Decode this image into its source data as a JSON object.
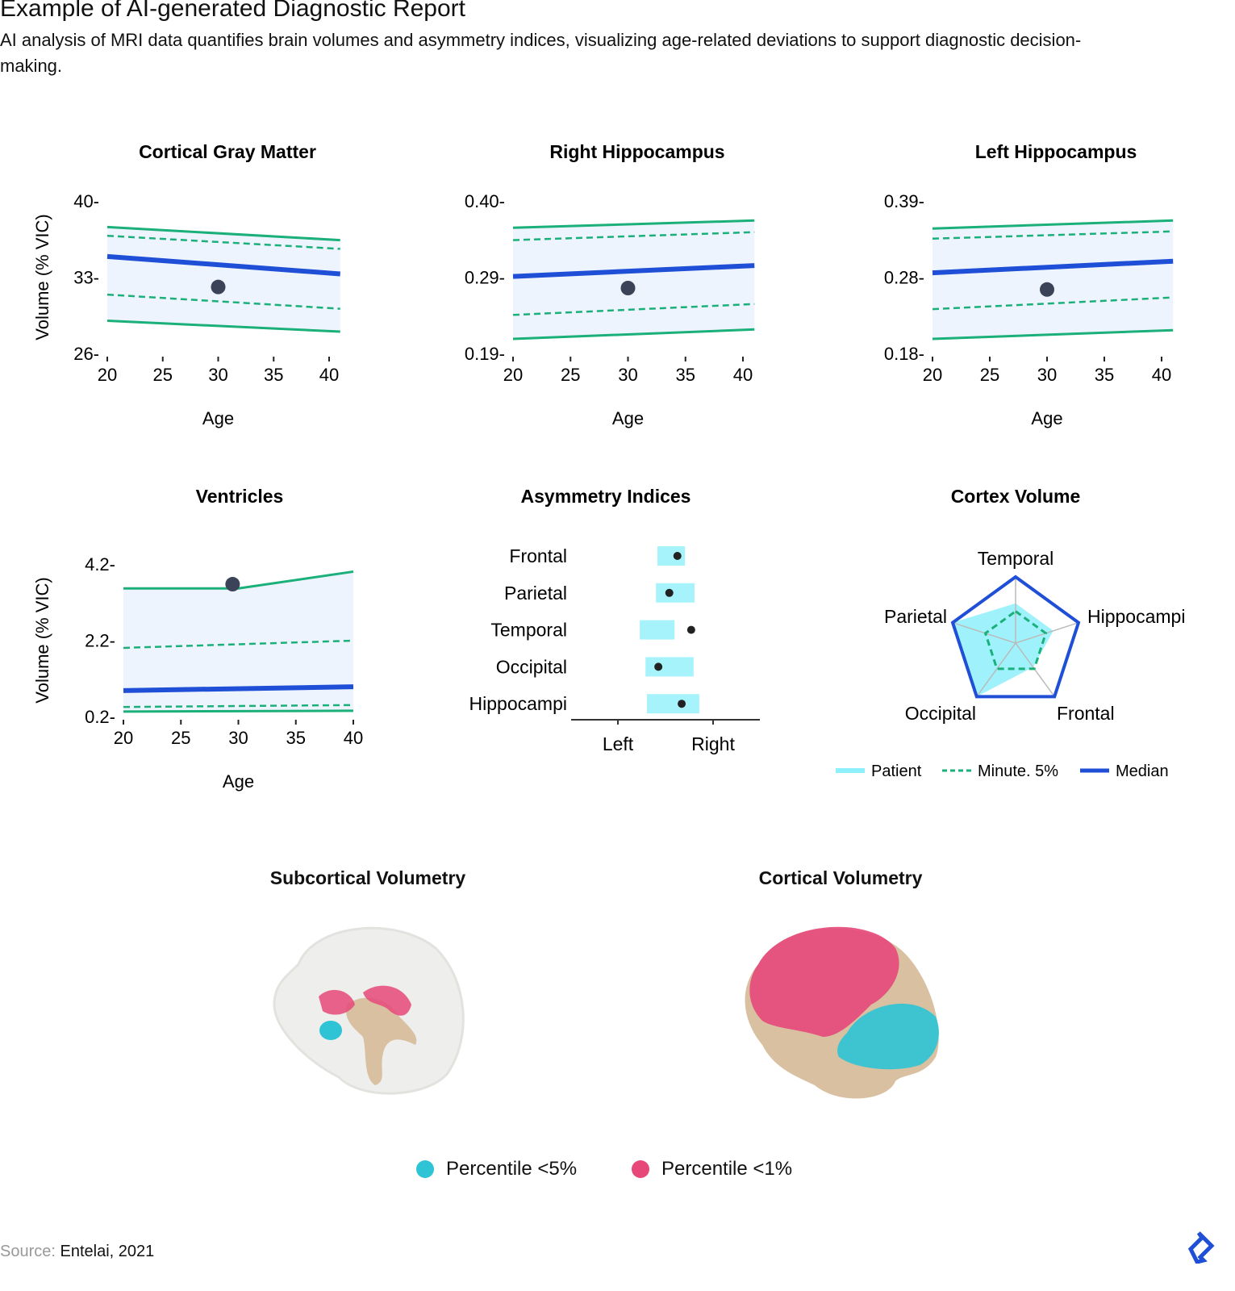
{
  "title": "Example of AI-generated Diagnostic Report",
  "subtitle": "AI analysis of MRI data quantifies brain volumes and asymmetry indices, visualizing age-related deviations to support diagnostic decision-making.",
  "colors": {
    "band": "#eef4fe",
    "outer": "#1bb07a",
    "dashed": "#1bb07a",
    "median": "#1f4fd6",
    "patient": "#3a4357",
    "asym_bar": "#a6f3fb",
    "radar_patient": "#8ef0fb",
    "pct5": "#2ec4d6",
    "pct1": "#e6487a"
  },
  "chart_data": [
    {
      "type": "line",
      "title": "Cortical Gray Matter",
      "xlabel": "Age",
      "ylabel": "Volume (% VIC)",
      "xticks": [
        20,
        25,
        30,
        35,
        40
      ],
      "yticks": [
        "26",
        "33",
        "40"
      ],
      "ylim": [
        26,
        40
      ],
      "xlim": [
        20,
        40
      ],
      "series": {
        "upper": [
          [
            20,
            37.6
          ],
          [
            41,
            36.4
          ]
        ],
        "upper_dashed": [
          [
            20,
            36.8
          ],
          [
            41,
            35.6
          ]
        ],
        "median": [
          [
            20,
            34.9
          ],
          [
            41,
            33.3
          ]
        ],
        "lower_dashed": [
          [
            20,
            31.4
          ],
          [
            41,
            30.1
          ]
        ],
        "lower": [
          [
            20,
            29.0
          ],
          [
            41,
            28.0
          ]
        ]
      },
      "patient": [
        30,
        32.1
      ]
    },
    {
      "type": "line",
      "title": "Right Hippocampus",
      "xlabel": "Age",
      "ylabel": "",
      "xticks": [
        20,
        25,
        30,
        35,
        40
      ],
      "yticks": [
        "0.19",
        "0.29",
        "0.40"
      ],
      "ylim": [
        0.19,
        0.4
      ],
      "xlim": [
        20,
        40
      ],
      "series": {
        "upper": [
          [
            20,
            0.363
          ],
          [
            41,
            0.373
          ]
        ],
        "upper_dashed": [
          [
            20,
            0.346
          ],
          [
            41,
            0.357
          ]
        ],
        "median": [
          [
            20,
            0.296
          ],
          [
            41,
            0.311
          ]
        ],
        "lower_dashed": [
          [
            20,
            0.243
          ],
          [
            41,
            0.258
          ]
        ],
        "lower": [
          [
            20,
            0.21
          ],
          [
            41,
            0.223
          ]
        ]
      },
      "patient": [
        30,
        0.28
      ]
    },
    {
      "type": "line",
      "title": "Left Hippocampus",
      "xlabel": "Age",
      "ylabel": "",
      "xticks": [
        20,
        25,
        30,
        35,
        40
      ],
      "yticks": [
        "0.18",
        "0.28",
        "0.39"
      ],
      "ylim": [
        0.18,
        0.39
      ],
      "xlim": [
        20,
        40
      ],
      "series": {
        "upper": [
          [
            20,
            0.352
          ],
          [
            41,
            0.363
          ]
        ],
        "upper_dashed": [
          [
            20,
            0.338
          ],
          [
            41,
            0.348
          ]
        ],
        "median": [
          [
            20,
            0.291
          ],
          [
            41,
            0.307
          ]
        ],
        "lower_dashed": [
          [
            20,
            0.241
          ],
          [
            41,
            0.257
          ]
        ],
        "lower": [
          [
            20,
            0.2
          ],
          [
            41,
            0.212
          ]
        ]
      },
      "patient": [
        30,
        0.268
      ]
    },
    {
      "type": "line",
      "title": "Ventricles",
      "xlabel": "Age",
      "ylabel": "Volume (% VIC)",
      "xticks": [
        20,
        25,
        30,
        35,
        40
      ],
      "yticks": [
        "0.2",
        "2.2",
        "4.2"
      ],
      "ylim": [
        0.2,
        4.2
      ],
      "xlim": [
        20,
        40
      ],
      "series": {
        "upper": [
          [
            20,
            3.56
          ],
          [
            30,
            3.56
          ],
          [
            40,
            4.0
          ]
        ],
        "upper_dashed": [
          [
            20,
            2.0
          ],
          [
            40,
            2.19
          ]
        ],
        "median": [
          [
            20,
            0.88
          ],
          [
            40,
            0.98
          ]
        ],
        "lower_dashed": [
          [
            20,
            0.45
          ],
          [
            40,
            0.5
          ]
        ],
        "lower": [
          [
            20,
            0.33
          ],
          [
            40,
            0.35
          ]
        ]
      },
      "patient": [
        29.5,
        3.67
      ]
    },
    {
      "type": "range",
      "title": "Asymmetry Indices",
      "categories": [
        "Frontal",
        "Parietal",
        "Temporal",
        "Occipital",
        "Hippocampi"
      ],
      "xticks": [
        "Left",
        "Right"
      ],
      "xlim": [
        -1.4,
        2
      ],
      "ranges": [
        [
          -0.17,
          0.41
        ],
        [
          -0.2,
          0.61
        ],
        [
          -0.54,
          0.19
        ],
        [
          -0.42,
          0.59
        ],
        [
          -0.39,
          0.71
        ]
      ],
      "patient": [
        0.25,
        0.08,
        0.54,
        -0.15,
        0.34
      ]
    },
    {
      "type": "radar",
      "title": "Cortex Volume",
      "axes": [
        "Temporal",
        "Hippocampi",
        "Frontal",
        "Occipital",
        "Parietal"
      ],
      "series": [
        {
          "name": "Patient",
          "values": [
            0.6,
            0.6,
            0.45,
            1.0,
            1.0
          ]
        },
        {
          "name": "Minute. 5%",
          "values": [
            0.48,
            0.48,
            0.48,
            0.48,
            0.48
          ]
        },
        {
          "name": "Median",
          "values": [
            1,
            1,
            1,
            1,
            1
          ]
        }
      ]
    }
  ],
  "brains": {
    "subcortical_title": "Subcortical Volumetry",
    "cortical_title": "Cortical Volumetry",
    "legend": [
      "Percentile <5%",
      "Percentile <1%"
    ]
  },
  "source": {
    "label": "Source:",
    "value": "Entelai, 2021"
  }
}
